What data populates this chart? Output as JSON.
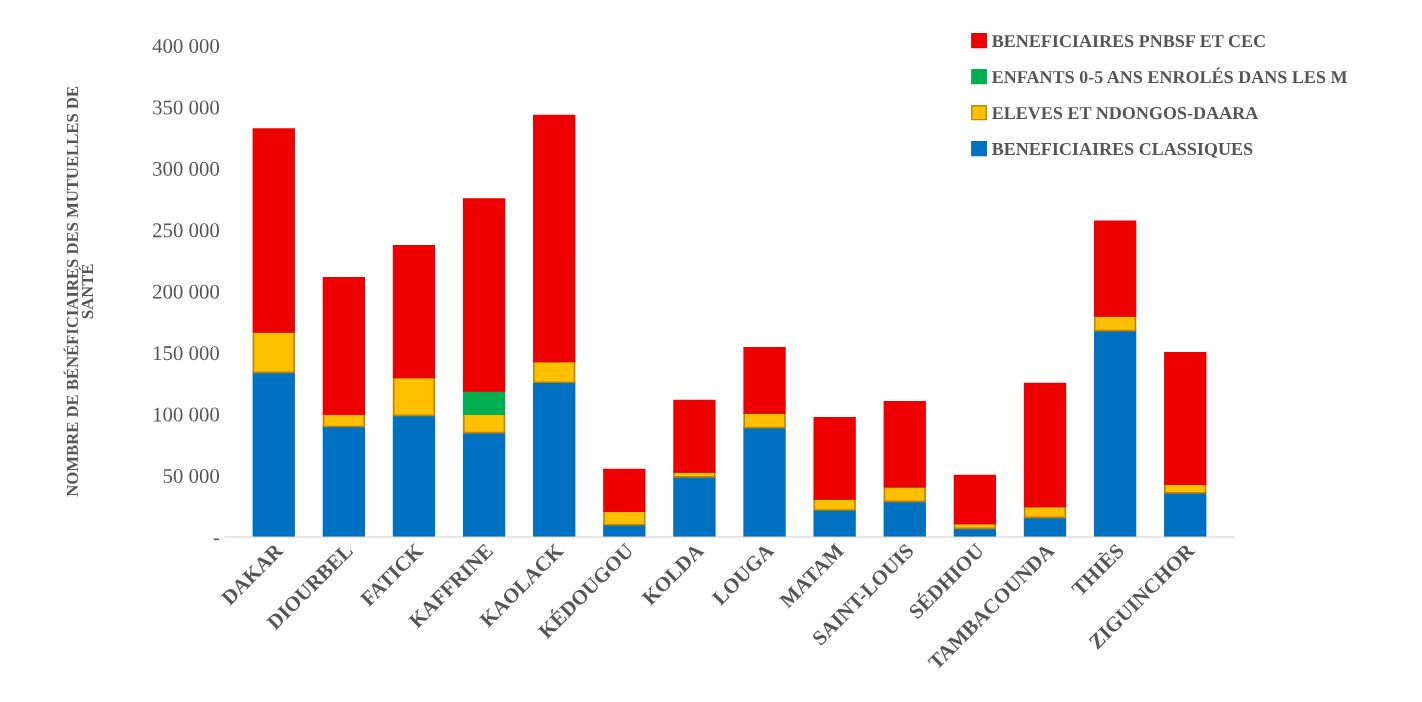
{
  "chart_data": {
    "type": "bar",
    "stacked": true,
    "ylabel": "NOMBRE DE BÉNÉFICIAIRES DES MUTUELLES DE\nSANTÉ",
    "categories": [
      "DAKAR",
      "DIOURBEL",
      "FATICK",
      "KAFFRINE",
      "KAOLACK",
      "KÉDOUGOU",
      "KOLDA",
      "LOUGA",
      "MATAM",
      "SAINT-LOUIS",
      "SÉDHIOU",
      "TAMBACOUNDA",
      "THIÈS",
      "ZIGUINCHOR"
    ],
    "series": [
      {
        "name": "BENEFICIAIRES CLASSIQUES",
        "color": "#0070c0",
        "values": [
          134000,
          90000,
          99000,
          85000,
          126000,
          10000,
          49000,
          89000,
          22000,
          29000,
          7000,
          16000,
          168000,
          36000
        ]
      },
      {
        "name": "ELEVES ET NDONGOS-DAARA",
        "color": "#ffc000",
        "values": [
          33000,
          10000,
          31000,
          15000,
          17000,
          11000,
          4000,
          12000,
          9000,
          12000,
          4000,
          9000,
          12000,
          7000
        ]
      },
      {
        "name": "ENFANTS 0-5 ANS ENROLÉS DANS LES M",
        "color": "#00b050",
        "values": [
          0,
          0,
          0,
          19000,
          0,
          0,
          0,
          0,
          0,
          0,
          0,
          0,
          0,
          0
        ]
      },
      {
        "name": "BENEFICIAIRES PNBSF ET CEC",
        "color": "#ee0000",
        "values": [
          165000,
          111000,
          107000,
          156000,
          200000,
          34000,
          58000,
          53000,
          66000,
          69000,
          39000,
          100000,
          77000,
          107000
        ]
      }
    ],
    "ylim": [
      0,
      400000
    ],
    "yticks": [
      {
        "value": 0,
        "label": "-"
      },
      {
        "value": 50000,
        "label": "50 000"
      },
      {
        "value": 100000,
        "label": "100 000"
      },
      {
        "value": 150000,
        "label": "150 000"
      },
      {
        "value": 200000,
        "label": "200 000"
      },
      {
        "value": 250000,
        "label": "250 000"
      },
      {
        "value": 300000,
        "label": "300 000"
      },
      {
        "value": 350000,
        "label": "350 000"
      },
      {
        "value": 400000,
        "label": "400 000"
      }
    ],
    "grid": false,
    "legend": "top right"
  }
}
